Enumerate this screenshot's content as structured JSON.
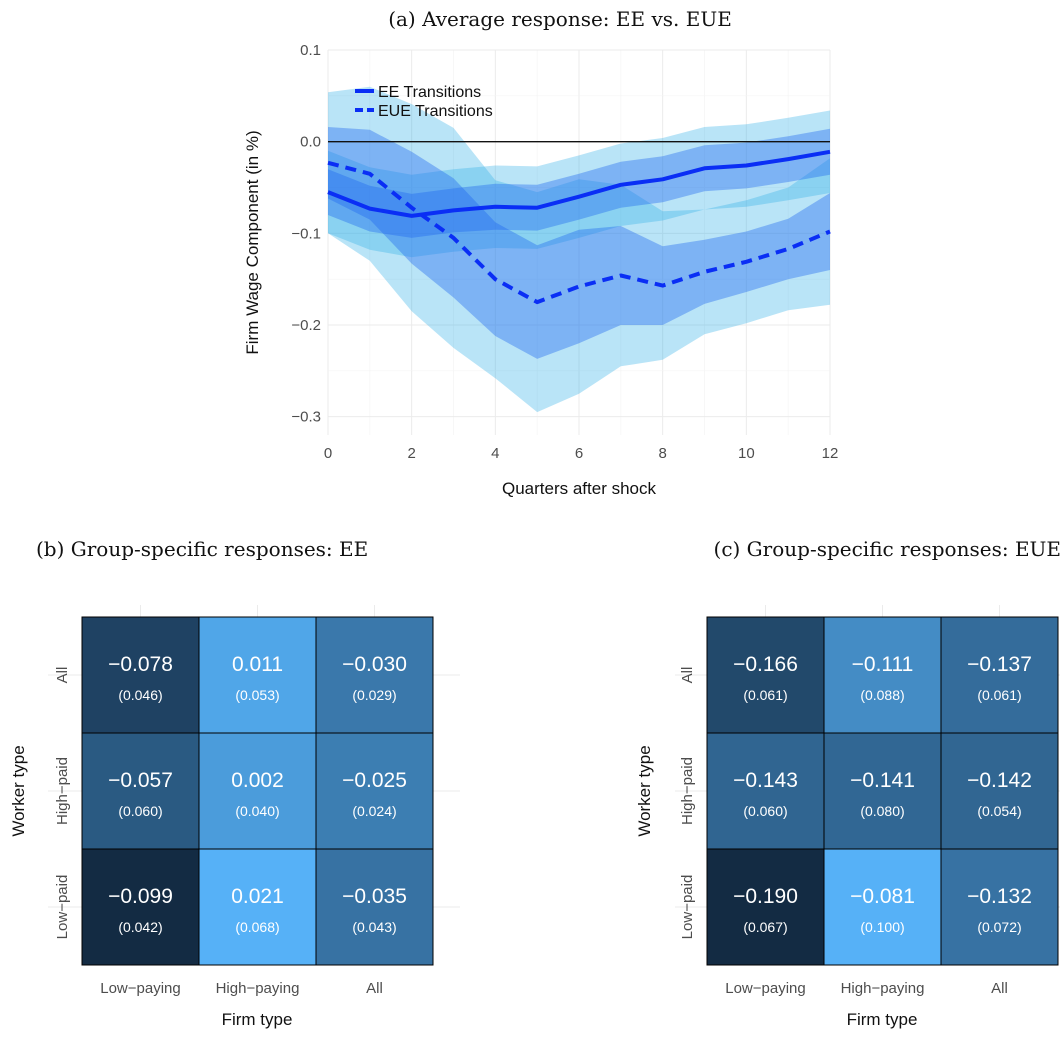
{
  "panels": {
    "a": {
      "caption": "(a) Average response: EE vs. EUE"
    },
    "b": {
      "caption": "(b) Group-specific responses: EE"
    },
    "c": {
      "caption": "(c) Group-specific responses: EUE"
    }
  },
  "chart_data": [
    {
      "id": "a",
      "type": "line",
      "title": "(a) Average response: EE vs. EUE",
      "xlabel": "Quarters after shock",
      "ylabel": "Firm Wage Component (in %)",
      "xlim": [
        0,
        12
      ],
      "ylim": [
        -0.32,
        0.1
      ],
      "xticks": [
        "0",
        "2",
        "4",
        "6",
        "8",
        "10",
        "12"
      ],
      "yticks": [
        "0.1",
        "0.0",
        "−0.1",
        "−0.2",
        "−0.3"
      ],
      "grid": true,
      "legend_position": "top-left",
      "zero_line": 0,
      "x": [
        0,
        1,
        2,
        3,
        4,
        5,
        6,
        7,
        8,
        9,
        10,
        11,
        12
      ],
      "series": [
        {
          "name": "EE Transitions",
          "style": "solid",
          "color": "#0a2ef5",
          "values": [
            -0.055,
            -0.073,
            -0.081,
            -0.075,
            -0.071,
            -0.072,
            -0.06,
            -0.047,
            -0.041,
            -0.029,
            -0.026,
            -0.019,
            -0.011
          ],
          "band90": [
            [
              -0.08,
              -0.03
            ],
            [
              -0.098,
              -0.048
            ],
            [
              -0.105,
              -0.057
            ],
            [
              -0.099,
              -0.051
            ],
            [
              -0.096,
              -0.046
            ],
            [
              -0.097,
              -0.047
            ],
            [
              -0.085,
              -0.035
            ],
            [
              -0.072,
              -0.022
            ],
            [
              -0.066,
              -0.016
            ],
            [
              -0.054,
              -0.004
            ],
            [
              -0.051,
              -0.001
            ],
            [
              -0.044,
              0.006
            ],
            [
              -0.036,
              0.014
            ]
          ],
          "band95": [
            [
              -0.1,
              -0.01
            ],
            [
              -0.118,
              -0.028
            ],
            [
              -0.126,
              -0.036
            ],
            [
              -0.12,
              -0.03
            ],
            [
              -0.116,
              -0.026
            ],
            [
              -0.117,
              -0.027
            ],
            [
              -0.105,
              -0.015
            ],
            [
              -0.092,
              -0.002
            ],
            [
              -0.086,
              0.004
            ],
            [
              -0.074,
              0.016
            ],
            [
              -0.071,
              0.019
            ],
            [
              -0.064,
              0.026
            ],
            [
              -0.056,
              0.034
            ]
          ]
        },
        {
          "name": "EUE Transitions",
          "style": "dashed",
          "color": "#0a2ef5",
          "values": [
            -0.023,
            -0.035,
            -0.072,
            -0.105,
            -0.15,
            -0.175,
            -0.158,
            -0.146,
            -0.157,
            -0.142,
            -0.131,
            -0.117,
            -0.098
          ],
          "band90": [
            [
              -0.062,
              0.016
            ],
            [
              -0.085,
              0.013
            ],
            [
              -0.133,
              -0.011
            ],
            [
              -0.17,
              -0.04
            ],
            [
              -0.212,
              -0.088
            ],
            [
              -0.237,
              -0.113
            ],
            [
              -0.22,
              -0.096
            ],
            [
              -0.2,
              -0.092
            ],
            [
              -0.2,
              -0.114
            ],
            [
              -0.177,
              -0.107
            ],
            [
              -0.164,
              -0.098
            ],
            [
              -0.15,
              -0.084
            ],
            [
              -0.14,
              -0.056
            ]
          ],
          "band95": [
            [
              -0.1,
              0.054
            ],
            [
              -0.13,
              0.06
            ],
            [
              -0.185,
              0.041
            ],
            [
              -0.225,
              0.015
            ],
            [
              -0.258,
              -0.042
            ],
            [
              -0.295,
              -0.055
            ],
            [
              -0.275,
              -0.041
            ],
            [
              -0.245,
              -0.047
            ],
            [
              -0.238,
              -0.076
            ],
            [
              -0.21,
              -0.074
            ],
            [
              -0.198,
              -0.064
            ],
            [
              -0.184,
              -0.05
            ],
            [
              -0.178,
              -0.018
            ]
          ]
        }
      ]
    },
    {
      "id": "b",
      "type": "heatmap",
      "title": "(b) Group-specific responses: EE",
      "xlabel": "Firm type",
      "ylabel": "Worker type",
      "x_categories": [
        "Low−paying",
        "High−paying",
        "All"
      ],
      "y_categories": [
        "All",
        "High−paid",
        "Low−paid"
      ],
      "values": [
        [
          -0.078,
          0.011,
          -0.03
        ],
        [
          -0.057,
          0.002,
          -0.025
        ],
        [
          -0.099,
          0.021,
          -0.035
        ]
      ],
      "labels": [
        [
          "−0.078",
          "0.011",
          "−0.030"
        ],
        [
          "−0.057",
          "0.002",
          "−0.025"
        ],
        [
          "−0.099",
          "0.021",
          "−0.035"
        ]
      ],
      "std_errors": [
        [
          "(0.046)",
          "(0.053)",
          "(0.029)"
        ],
        [
          "(0.060)",
          "(0.040)",
          "(0.024)"
        ],
        [
          "(0.042)",
          "(0.068)",
          "(0.043)"
        ]
      ],
      "color_low": "#132b43",
      "color_high": "#56b1f7"
    },
    {
      "id": "c",
      "type": "heatmap",
      "title": "(c) Group-specific responses: EUE",
      "xlabel": "Firm type",
      "ylabel": "Worker type",
      "x_categories": [
        "Low−paying",
        "High−paying",
        "All"
      ],
      "y_categories": [
        "All",
        "High−paid",
        "Low−paid"
      ],
      "values": [
        [
          -0.166,
          -0.111,
          -0.137
        ],
        [
          -0.143,
          -0.141,
          -0.142
        ],
        [
          -0.19,
          -0.081,
          -0.132
        ]
      ],
      "labels": [
        [
          "−0.166",
          "−0.111",
          "−0.137"
        ],
        [
          "−0.143",
          "−0.141",
          "−0.142"
        ],
        [
          "−0.190",
          "−0.081",
          "−0.132"
        ]
      ],
      "std_errors": [
        [
          "(0.061)",
          "(0.088)",
          "(0.061)"
        ],
        [
          "(0.060)",
          "(0.080)",
          "(0.054)"
        ],
        [
          "(0.067)",
          "(0.100)",
          "(0.072)"
        ]
      ],
      "color_low": "#132b43",
      "color_high": "#56b1f7"
    }
  ]
}
